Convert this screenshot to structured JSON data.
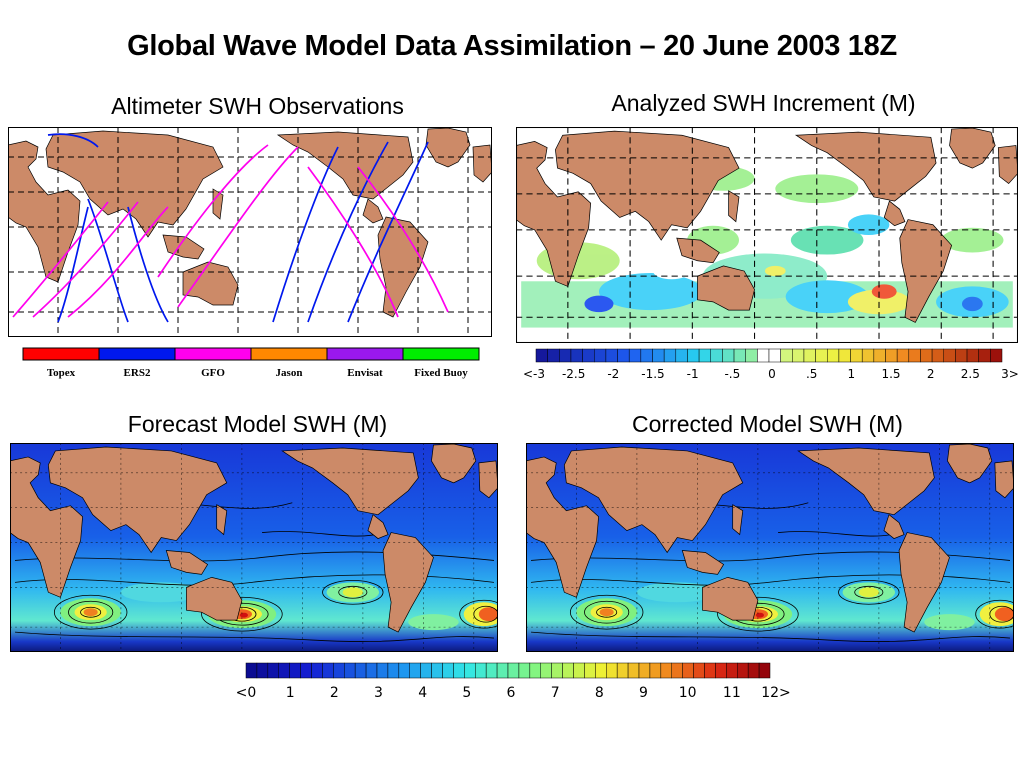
{
  "title": "Global Wave Model Data Assimilation – 20 June 2003 18Z",
  "panels": {
    "altimeter": {
      "title": "Altimeter SWH Observations"
    },
    "increment": {
      "title": "Analyzed SWH Increment (M)"
    },
    "forecast": {
      "title": "Forecast Model SWH (M)"
    },
    "corrected": {
      "title": "Corrected Model SWH (M)"
    }
  },
  "satellite_legend": [
    {
      "name": "Topex",
      "color": "#ff0000"
    },
    {
      "name": "ERS2",
      "color": "#0018ee"
    },
    {
      "name": "GFO",
      "color": "#ff00ee"
    },
    {
      "name": "Jason",
      "color": "#ff8800"
    },
    {
      "name": "Envisat",
      "color": "#9a18ee"
    },
    {
      "name": "Fixed Buoy",
      "color": "#00ee00"
    }
  ],
  "increment_legend": {
    "labels": [
      "<-3",
      "-2.5",
      "-2",
      "-1.5",
      "-1",
      "-.5",
      "0",
      ".5",
      "1",
      "1.5",
      "2",
      "2.5",
      "3>"
    ]
  },
  "swh_legend": {
    "labels": [
      "<0",
      "1",
      "2",
      "3",
      "4",
      "5",
      "6",
      "7",
      "8",
      "9",
      "10",
      "11",
      "12>"
    ]
  }
}
